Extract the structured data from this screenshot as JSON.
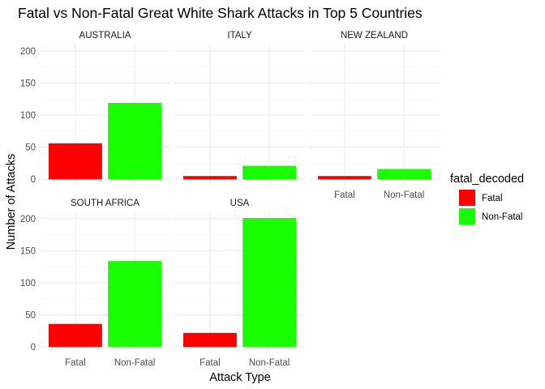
{
  "chart_data": {
    "type": "bar",
    "title": "Fatal vs Non-Fatal Great White Shark Attacks in Top 5 Countries",
    "xlabel": "Attack Type",
    "ylabel": "Number of Attacks",
    "ylim": [
      0,
      200
    ],
    "y_ticks": [
      "0",
      "50",
      "100",
      "150",
      "200"
    ],
    "categories": [
      "Fatal",
      "Non-Fatal"
    ],
    "legend": {
      "title": "fatal_decoded",
      "position": "right",
      "entries": [
        {
          "label": "Fatal",
          "color": "#ff0000"
        },
        {
          "label": "Non-Fatal",
          "color": "#1aff00"
        }
      ]
    },
    "facets": [
      {
        "label": "AUSTRALIA",
        "values": [
          56,
          119
        ]
      },
      {
        "label": "ITALY",
        "values": [
          5,
          21
        ]
      },
      {
        "label": "NEW ZEALAND",
        "values": [
          5,
          16
        ]
      },
      {
        "label": "SOUTH AFRICA",
        "values": [
          36,
          134
        ]
      },
      {
        "label": "USA",
        "values": [
          22,
          201
        ]
      }
    ],
    "grid": true
  }
}
